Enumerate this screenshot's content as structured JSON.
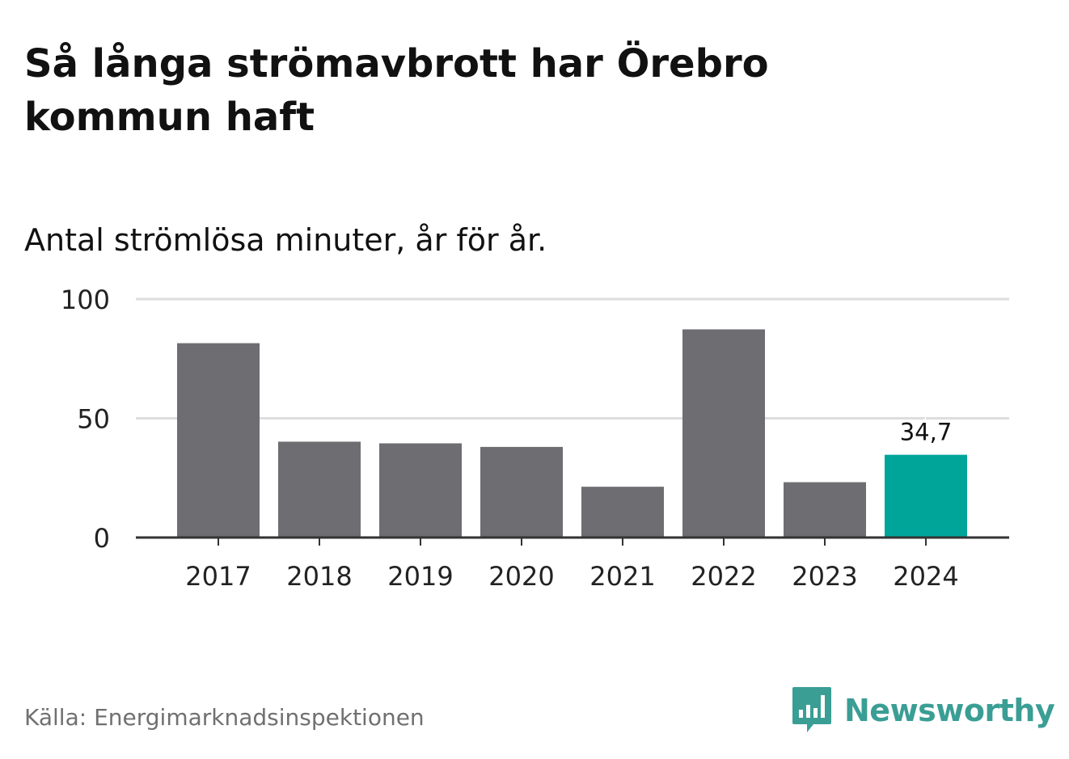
{
  "title": "Så långa strömavbrott har Örebro kommun haft",
  "subtitle": "Antal strömlösa minuter, år för år.",
  "source": "Källa: Energimarknadsinspektionen",
  "brand": {
    "name": "Newsworthy",
    "icon": "newsworthy-logo-icon",
    "color": "#3a9e95"
  },
  "colors": {
    "bar": "#6e6d72",
    "highlight": "#00a59a",
    "grid": "#dddddd",
    "axis": "#333333",
    "tick_text": "#222222"
  },
  "chart_data": {
    "type": "bar",
    "categories": [
      "2017",
      "2018",
      "2019",
      "2020",
      "2021",
      "2022",
      "2023",
      "2024"
    ],
    "values": [
      81.5,
      40.2,
      39.5,
      38,
      21.3,
      87.3,
      23.2,
      34.7
    ],
    "highlight_index": 7,
    "data_labels": [
      {
        "index": 7,
        "text": "34,7"
      }
    ],
    "y_ticks": [
      {
        "value": 0,
        "label": "0"
      },
      {
        "value": 50,
        "label": "50"
      },
      {
        "value": 100,
        "label": "100"
      }
    ],
    "ylim": [
      0,
      100
    ],
    "grid": true,
    "legend": false
  }
}
